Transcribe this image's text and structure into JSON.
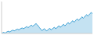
{
  "chart_data": {
    "type": "area",
    "values": [
      60,
      62,
      63,
      61,
      63,
      65,
      66,
      64,
      66,
      68,
      69,
      67,
      69,
      71,
      72,
      70,
      72,
      74,
      75,
      73,
      75,
      77,
      79,
      76,
      78,
      81,
      83,
      80,
      82,
      85,
      87,
      84,
      80,
      76,
      72,
      68,
      70,
      73,
      71,
      67,
      69,
      72,
      74,
      70,
      72,
      75,
      77,
      73,
      75,
      79,
      81,
      77,
      79,
      83,
      85,
      81,
      84,
      88,
      90,
      86,
      89,
      93,
      95,
      91,
      94,
      98,
      100,
      96,
      99,
      103,
      106,
      102,
      105,
      109,
      112,
      108,
      111,
      115,
      118,
      114
    ],
    "color": "#3a9fd4",
    "xlim": [
      0,
      79
    ],
    "ylim": [
      60,
      148
    ],
    "tick_labels": false
  }
}
